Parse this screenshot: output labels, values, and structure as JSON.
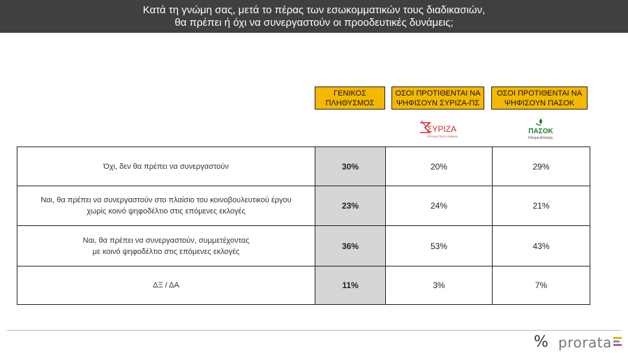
{
  "title": {
    "line1": "Κατά τη γνώμη σας, μετά το πέρας των εσωκομματικών τους διαδικασιών,",
    "line2": "θα πρέπει ή όχι να συνεργαστούν οι προοδευτικές δυνάμεις;"
  },
  "columns": [
    {
      "line1": "ΓΕΝΙΚΟΣ",
      "line2": "ΠΛΗΘΥΣΜΟΣ"
    },
    {
      "line1": "ΟΣΟΙ ΠΡΟΤΙΘΕΝΤΑΙ ΝΑ",
      "line2": "ΨΗΦΙΣΟΥΝ ΣΥΡΙΖΑ-ΠΣ"
    },
    {
      "line1": "ΟΣΟΙ ΠΡΟΤΙΘΕΝΤΑΙ ΝΑ",
      "line2": "ΨΗΦΙΣΟΥΝ ΠΑΣΟΚ"
    }
  ],
  "logos": {
    "syriza": {
      "name": "ΣΥΡΙΖΑ",
      "sub": "ΠΡΟΟΔΕΥΤΙΚΗ ΣΥΜΜΑΧΙΑ",
      "color": "#d62a2a"
    },
    "pasok": {
      "name": "ΠΑΣΟΚ",
      "sub": "Κίνημα Αλλαγής",
      "color": "#1f7a2e"
    }
  },
  "rows": [
    {
      "line1": "Όχι, δεν θα πρέπει να συνεργαστούν",
      "line2": "",
      "values": [
        "30%",
        "20%",
        "29%"
      ]
    },
    {
      "line1": "Ναι, θα πρέπει να συνεργαστούν στο πλαίσιο του κοινοβουλευτικού έργου",
      "line2": "χωρίς κοινό ψηφοδέλτιο στις επόμενες εκλογές",
      "values": [
        "23%",
        "24%",
        "21%"
      ]
    },
    {
      "line1": "Ναι, θα πρέπει να συνεργαστούν, συμμετέχοντας",
      "line2": "με κοινό ψηφοδέλτιο στις επόμενες εκλογές",
      "values": [
        "36%",
        "53%",
        "43%"
      ]
    },
    {
      "line1": "ΔΞ / ΔΑ",
      "line2": "",
      "values": [
        "11%",
        "3%",
        "7%"
      ]
    }
  ],
  "footer": {
    "symbol": "%",
    "brand": "prorata"
  },
  "colors": {
    "header_bg": "#404040",
    "column_head_bg": "#f5b800",
    "total_col_bg": "#d6d6d6"
  }
}
